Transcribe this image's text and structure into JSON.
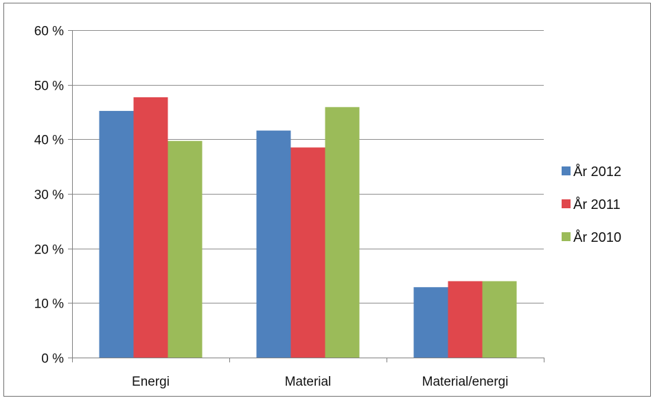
{
  "chart_data": {
    "type": "bar",
    "title": "",
    "xlabel": "",
    "ylabel": "",
    "categories": [
      "Energi",
      "Material",
      "Material/energi"
    ],
    "series": [
      {
        "name": "År 2012",
        "values": [
          45.2,
          41.6,
          12.9
        ],
        "color": "#4f81bd"
      },
      {
        "name": "År 2011",
        "values": [
          47.7,
          38.5,
          14.0
        ],
        "color": "#e0474c"
      },
      {
        "name": "År 2010",
        "values": [
          39.7,
          45.9,
          14.0
        ],
        "color": "#9bbb59"
      }
    ],
    "ylim": [
      0,
      60
    ],
    "yticks": [
      0,
      10,
      20,
      30,
      40,
      50,
      60
    ],
    "ytick_labels": [
      "0 %",
      "10 %",
      "20 %",
      "30 %",
      "40 %",
      "50 %",
      "60 %"
    ],
    "grid": true,
    "legend_position": "right"
  }
}
